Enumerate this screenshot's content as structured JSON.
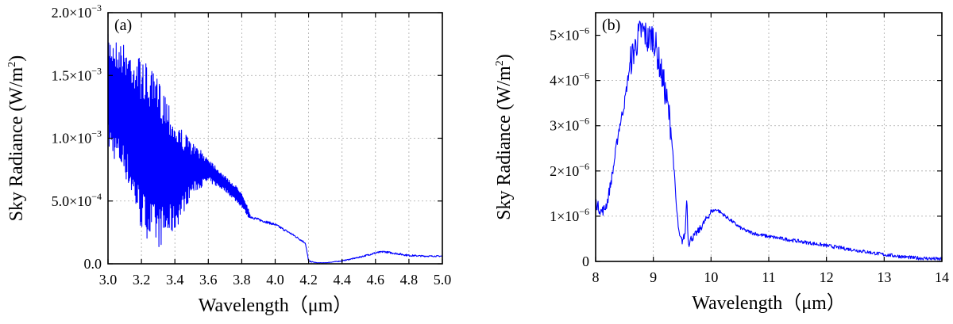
{
  "chart_data": [
    {
      "type": "line",
      "panel_label": "(a)",
      "xlabel": "Wavelength（μm）",
      "ylabel": "Sky Radiance (W/m²)",
      "ylabel_main": "Sky Radiance (W/m",
      "ylabel_sup": "2",
      "ylabel_close": ")",
      "xlim": [
        3.0,
        5.0
      ],
      "ylim": [
        0,
        0.002
      ],
      "xticks": [
        3.0,
        3.2,
        3.4,
        3.6,
        3.8,
        4.0,
        4.2,
        4.4,
        4.6,
        4.8,
        5.0
      ],
      "xtick_labels": [
        "3.0",
        "3.2",
        "3.4",
        "3.6",
        "3.8",
        "4.0",
        "4.2",
        "4.4",
        "4.6",
        "4.8",
        "5.0"
      ],
      "yticks": [
        0,
        0.0005,
        0.001,
        0.0015,
        0.002
      ],
      "ytick_labels": [
        {
          "mant": "0.0",
          "exp": ""
        },
        {
          "mant": "5.0×10",
          "exp": "−4"
        },
        {
          "mant": "1.0×10",
          "exp": "−3"
        },
        {
          "mant": "1.5×10",
          "exp": "−3"
        },
        {
          "mant": "2.0×10",
          "exp": "−3"
        }
      ],
      "grid": true,
      "series": [
        {
          "color": "#0000ff",
          "x": [
            3.0,
            3.1,
            3.2,
            3.25,
            3.3,
            3.35,
            3.4,
            3.5,
            3.6,
            3.7,
            3.8,
            3.85,
            3.9,
            4.0,
            4.1,
            4.18,
            4.2,
            4.25,
            4.3,
            4.4,
            4.5,
            4.6,
            4.65,
            4.7,
            4.8,
            4.9,
            5.0
          ],
          "upper": [
            0.00183,
            0.00175,
            0.00165,
            0.00155,
            0.00148,
            0.00138,
            0.00115,
            0.00097,
            0.00085,
            0.0007,
            0.00058,
            0.0004,
            0.00037,
            0.00033,
            0.00025,
            0.00018,
            3e-05,
            1e-05,
            1e-05,
            3e-05,
            6e-05,
            0.0001,
            0.00011,
            0.0001,
            8e-05,
            7e-05,
            7e-05
          ],
          "lower": [
            0.0009,
            0.0007,
            0.00025,
            0.00018,
            0.00012,
            0.00018,
            0.00025,
            0.00055,
            0.00065,
            0.00058,
            0.00045,
            0.00035,
            0.00033,
            0.00029,
            0.00022,
            0.00015,
            1e-05,
            5e-06,
            5e-06,
            1.5e-05,
            4e-05,
            7e-05,
            8e-05,
            7e-05,
            5e-05,
            5e-05,
            5e-05
          ]
        }
      ]
    },
    {
      "type": "line",
      "panel_label": "(b)",
      "xlabel": "Wavelength（μm）",
      "ylabel": "Sky Radiance (W/m²)",
      "ylabel_main": "Sky Radiance (W/m",
      "ylabel_sup": "2",
      "ylabel_close": ")",
      "xlim": [
        8,
        14
      ],
      "ylim": [
        0,
        5.5e-06
      ],
      "xticks": [
        8,
        9,
        10,
        11,
        12,
        13,
        14
      ],
      "xtick_labels": [
        "8",
        "9",
        "10",
        "11",
        "12",
        "13",
        "14"
      ],
      "yticks": [
        0,
        1e-06,
        2e-06,
        3e-06,
        4e-06,
        5e-06
      ],
      "ytick_labels": [
        {
          "mant": "0",
          "exp": ""
        },
        {
          "mant": "1×10",
          "exp": "−6"
        },
        {
          "mant": "2×10",
          "exp": "−6"
        },
        {
          "mant": "3×10",
          "exp": "−6"
        },
        {
          "mant": "4×10",
          "exp": "−6"
        },
        {
          "mant": "5×10",
          "exp": "−6"
        }
      ],
      "grid": true,
      "series": [
        {
          "color": "#0000ff",
          "x": [
            8.0,
            8.05,
            8.1,
            8.15,
            8.2,
            8.3,
            8.4,
            8.5,
            8.6,
            8.7,
            8.75,
            8.8,
            8.85,
            8.9,
            9.0,
            9.05,
            9.1,
            9.2,
            9.3,
            9.35,
            9.4,
            9.45,
            9.5,
            9.55,
            9.58,
            9.6,
            9.62,
            9.65,
            9.7,
            9.8,
            9.9,
            10.0,
            10.1,
            10.2,
            10.3,
            10.4,
            10.5,
            10.6,
            10.8,
            11.0,
            11.5,
            12.0,
            12.5,
            13.0,
            13.5,
            14.0
          ],
          "y": [
            1.3e-06,
            1.2e-06,
            1.1e-06,
            1.15e-06,
            1.3e-06,
            2e-06,
            2.9e-06,
            3.5e-06,
            4.4e-06,
            4.8e-06,
            5e-06,
            5.1e-06,
            5.05e-06,
            4.9e-06,
            5e-06,
            4.7e-06,
            4.4e-06,
            3.8e-06,
            3e-06,
            2.2e-06,
            1.2e-06,
            5.5e-07,
            4.5e-07,
            6e-07,
            1.5e-06,
            5e-07,
            4e-07,
            5e-07,
            5.5e-07,
            7e-07,
            9e-07,
            1.1e-06,
            1.15e-06,
            1.05e-06,
            9.5e-07,
            8.5e-07,
            7.5e-07,
            6.8e-07,
            6e-07,
            5.5e-07,
            4.5e-07,
            3.5e-07,
            2.5e-07,
            1.5e-07,
            8e-08,
            5e-08
          ]
        }
      ]
    }
  ]
}
